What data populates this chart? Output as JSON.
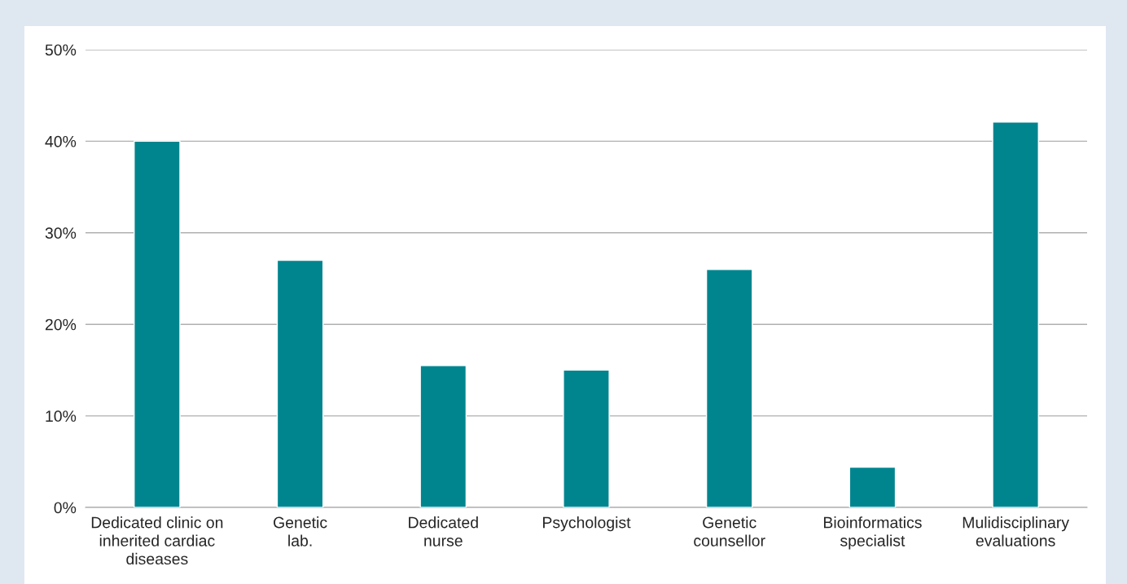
{
  "chart_data": {
    "type": "bar",
    "categories": [
      "Dedicated clinic on\ninherited cardiac\ndiseases",
      "Genetic\nlab.",
      "Dedicated\nnurse",
      "Psychologist",
      "Genetic\ncounsellor",
      "Bioinformatics\nspecialist",
      "Mulidisciplinary\nevaluations"
    ],
    "values": [
      40,
      27,
      15.5,
      15,
      26,
      4.4,
      42.1
    ],
    "color": "#00858f",
    "ylim": [
      0,
      50
    ],
    "yticks": [
      {
        "value": 0,
        "label": "0%"
      },
      {
        "value": 10,
        "label": "10%"
      },
      {
        "value": 20,
        "label": "20%"
      },
      {
        "value": 30,
        "label": "30%"
      },
      {
        "value": 40,
        "label": "40%"
      },
      {
        "value": 50,
        "label": "50%"
      }
    ],
    "grid": "y"
  }
}
